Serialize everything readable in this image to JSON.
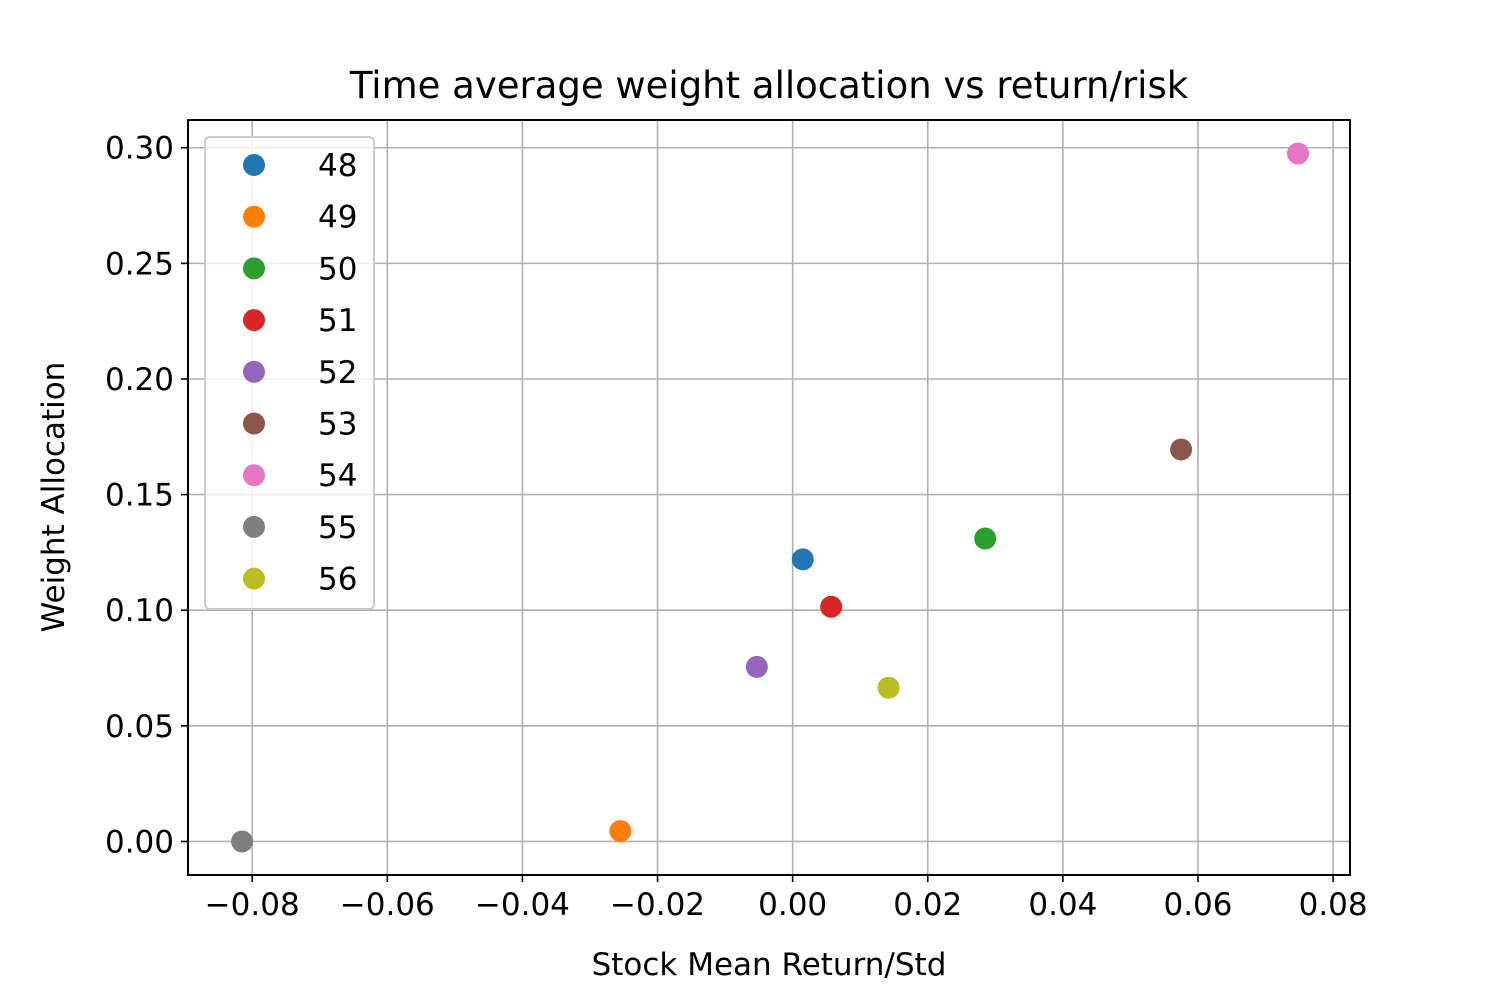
{
  "chart_data": {
    "type": "scatter",
    "title": "Time average weight allocation vs return/risk",
    "xlabel": "Stock Mean Return/Std",
    "ylabel": "Weight Allocation",
    "xlim": [
      -0.0895,
      0.0825
    ],
    "ylim": [
      -0.0145,
      0.312
    ],
    "x_ticks": [
      -0.08,
      -0.06,
      -0.04,
      -0.02,
      0.0,
      0.02,
      0.04,
      0.06,
      0.08
    ],
    "x_tick_labels": [
      "−0.08",
      "−0.06",
      "−0.04",
      "−0.02",
      "0.00",
      "0.02",
      "0.04",
      "0.06",
      "0.08"
    ],
    "y_ticks": [
      0.0,
      0.05,
      0.1,
      0.15,
      0.2,
      0.25,
      0.3
    ],
    "y_tick_labels": [
      "0.00",
      "0.05",
      "0.10",
      "0.15",
      "0.20",
      "0.25",
      "0.30"
    ],
    "grid": true,
    "legend_position": "top-left",
    "series": [
      {
        "name": "48",
        "color": "#1f77b4",
        "x": 0.0015,
        "y": 0.122
      },
      {
        "name": "49",
        "color": "#ff7f0e",
        "x": -0.0255,
        "y": 0.0045
      },
      {
        "name": "50",
        "color": "#2ca02c",
        "x": 0.0285,
        "y": 0.131
      },
      {
        "name": "51",
        "color": "#d62728",
        "x": 0.0057,
        "y": 0.1015
      },
      {
        "name": "52",
        "color": "#9467bd",
        "x": -0.0053,
        "y": 0.0755
      },
      {
        "name": "53",
        "color": "#8c564b",
        "x": 0.0575,
        "y": 0.1695
      },
      {
        "name": "54",
        "color": "#e377c2",
        "x": 0.0748,
        "y": 0.2975
      },
      {
        "name": "55",
        "color": "#7f7f7f",
        "x": -0.0815,
        "y": 0.0
      },
      {
        "name": "56",
        "color": "#bcbd22",
        "x": 0.0142,
        "y": 0.0665
      }
    ]
  }
}
